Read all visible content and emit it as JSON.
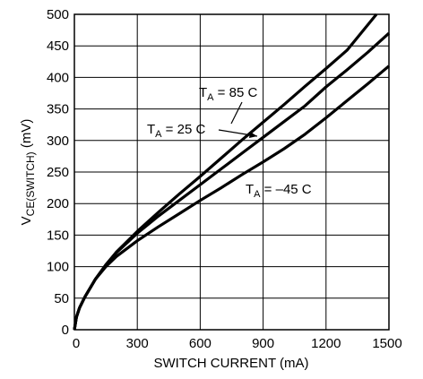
{
  "chart_data": {
    "type": "line",
    "xlabel": "SWITCH CURRENT (mA)",
    "ylabel": {
      "main": "V",
      "sub": "CE(SWITCH)",
      "unit": " (mV)"
    },
    "xlim": [
      0,
      1500
    ],
    "ylim": [
      0,
      500
    ],
    "xticks": [
      0,
      300,
      600,
      900,
      1200,
      1500
    ],
    "yticks": [
      0,
      50,
      100,
      150,
      200,
      250,
      300,
      350,
      400,
      450,
      500
    ],
    "grid": true,
    "series": [
      {
        "name": "TA = 85 C",
        "label_parts": {
          "main": "T",
          "sub": "A",
          "rest": " = 85  C"
        },
        "x": [
          0,
          10,
          25,
          50,
          100,
          150,
          200,
          300,
          400,
          500,
          600,
          700,
          800,
          900,
          1000,
          1100,
          1200,
          1300,
          1440
        ],
        "y": [
          0,
          20,
          35,
          52,
          80,
          103,
          123,
          156,
          186,
          215,
          243,
          272,
          301,
          329,
          357,
          386,
          414,
          443,
          500
        ]
      },
      {
        "name": "TA = 25 C",
        "label_parts": {
          "main": "T",
          "sub": "A",
          "rest": " = 25  C"
        },
        "x": [
          0,
          10,
          25,
          50,
          100,
          150,
          200,
          300,
          400,
          500,
          600,
          700,
          800,
          900,
          1000,
          1100,
          1200,
          1300,
          1400,
          1500
        ],
        "y": [
          0,
          20,
          35,
          52,
          80,
          103,
          122,
          153,
          180,
          205,
          230,
          255,
          280,
          305,
          330,
          355,
          385,
          412,
          440,
          470
        ]
      },
      {
        "name": "TA = –45 C",
        "label_parts": {
          "main": "T",
          "sub": "A",
          "rest": " = –45  C"
        },
        "x": [
          0,
          10,
          25,
          50,
          100,
          150,
          200,
          300,
          400,
          500,
          600,
          700,
          800,
          900,
          1000,
          1100,
          1200,
          1300,
          1400,
          1500
        ],
        "y": [
          0,
          20,
          35,
          52,
          80,
          100,
          116,
          141,
          163,
          184,
          205,
          225,
          246,
          266,
          287,
          310,
          336,
          363,
          390,
          418
        ]
      }
    ]
  }
}
